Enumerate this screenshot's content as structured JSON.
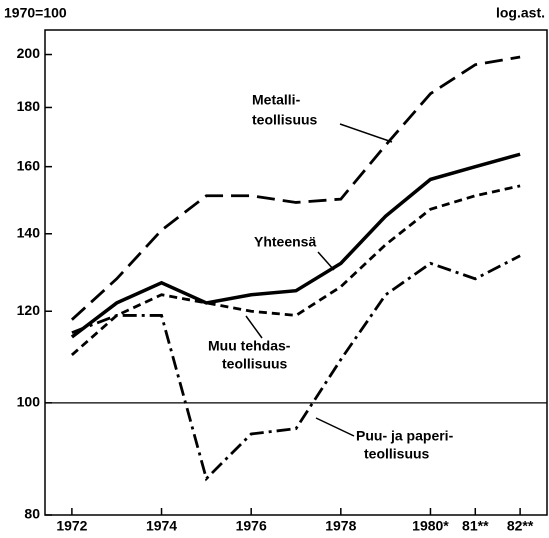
{
  "chart_data": {
    "type": "line",
    "corner_labels": [
      "1970=100",
      "log.ast."
    ],
    "annotations": [
      "Metalli-",
      "teollisuus",
      "Yhteensä",
      "Muu tehdas-",
      "teollisuus",
      "Puu- ja paperi-",
      "teollisuus"
    ],
    "x": [
      1972,
      1973,
      1974,
      1975,
      1976,
      1977,
      1978,
      1979,
      1980,
      1981,
      1982
    ],
    "series": [
      {
        "name": "Metalliteollisuus",
        "color": "#000000",
        "style": "long-dash",
        "values": [
          118,
          128,
          141,
          151,
          151,
          149,
          150,
          167,
          185,
          196,
          199
        ]
      },
      {
        "name": "Yhteensä",
        "color": "#000000",
        "style": "solid",
        "values": [
          114,
          122,
          127,
          122,
          124,
          125,
          132,
          145,
          156,
          160,
          164
        ]
      },
      {
        "name": "Muu tehdasteollisuus",
        "color": "#000000",
        "style": "short-dash",
        "values": [
          110,
          119,
          124,
          122,
          120,
          119,
          126,
          137,
          147,
          151,
          154
        ]
      },
      {
        "name": "Puu- ja paperiteollisuus",
        "color": "#000000",
        "style": "dash-dot",
        "values": [
          115,
          119,
          119,
          86,
          94,
          95,
          109,
          124,
          132,
          128,
          134
        ]
      }
    ],
    "xlim": [
      1971.4,
      1982.6
    ],
    "xticks": [
      1972,
      1974,
      1976,
      1978,
      {
        "value": 1980,
        "label": "1980*"
      },
      {
        "value": 1981,
        "label": "81**"
      },
      {
        "value": 1982,
        "label": "82**"
      }
    ],
    "ylim": [
      80,
      210
    ],
    "yticks": [
      80,
      100,
      120,
      140,
      160,
      180,
      200
    ],
    "log_scale": true,
    "reference_line": 100
  }
}
